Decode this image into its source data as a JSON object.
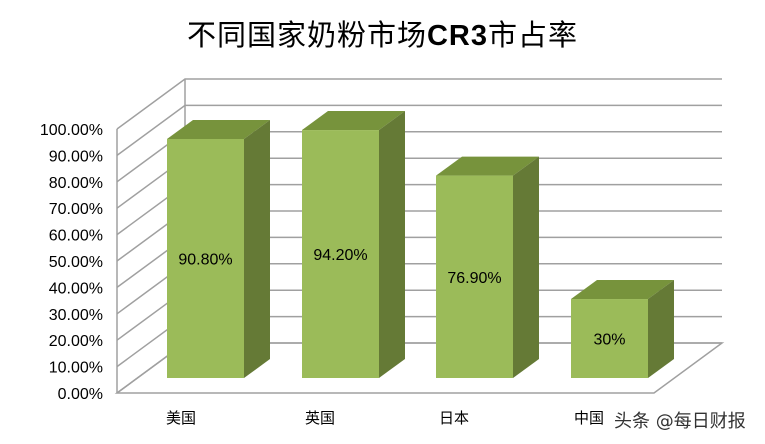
{
  "title": {
    "part1": "不同国家奶粉市场",
    "part2": "CR3",
    "part3": "市占率"
  },
  "watermark": "头条 @每日财报",
  "colors": {
    "bar_front": "#9bbb59",
    "bar_top": "#77933c",
    "bar_side": "#657a36",
    "grid": "#a0a0a0"
  },
  "chart_data": {
    "type": "bar",
    "title": "不同国家奶粉市场CR3市占率",
    "categories": [
      "美国",
      "英国",
      "日本",
      "中国"
    ],
    "values": [
      90.8,
      94.2,
      76.9,
      30
    ],
    "data_labels": [
      "90.80%",
      "94.20%",
      "76.90%",
      "30%"
    ],
    "xlabel": "",
    "ylabel": "",
    "ylim": [
      0,
      100
    ],
    "yticks": [
      "0.00%",
      "10.00%",
      "20.00%",
      "30.00%",
      "40.00%",
      "50.00%",
      "60.00%",
      "70.00%",
      "80.00%",
      "90.00%",
      "100.00%"
    ],
    "grid": true,
    "legend": "none",
    "style": "3d-column"
  }
}
